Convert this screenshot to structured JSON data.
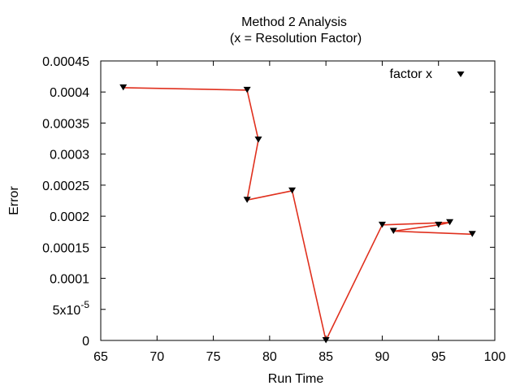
{
  "chart_data": {
    "type": "line",
    "title_line1": "Method 2 Analysis",
    "title_line2": "(x = Resolution Factor)",
    "xlabel": "Run Time",
    "ylabel": "Error",
    "xlim": [
      65,
      100
    ],
    "ylim": [
      0,
      0.00045
    ],
    "x_ticks": [
      65,
      70,
      75,
      80,
      85,
      90,
      95,
      100
    ],
    "y_ticks": [
      {
        "value": 0,
        "label": "0"
      },
      {
        "value": 5e-05,
        "label": "5x10",
        "sup": "-5"
      },
      {
        "value": 0.0001,
        "label": "0.0001"
      },
      {
        "value": 0.00015,
        "label": "0.00015"
      },
      {
        "value": 0.0002,
        "label": "0.0002"
      },
      {
        "value": 0.00025,
        "label": "0.00025"
      },
      {
        "value": 0.0003,
        "label": "0.0003"
      },
      {
        "value": 0.00035,
        "label": "0.00035"
      },
      {
        "value": 0.0004,
        "label": "0.0004"
      },
      {
        "value": 0.00045,
        "label": "0.00045"
      }
    ],
    "grid": false,
    "legend_position": "top-right",
    "series": [
      {
        "name": "factor x",
        "line_color": "#e0301e",
        "marker_color": "#000000",
        "marker": "triangle-down",
        "points": [
          {
            "x": 67,
            "y": 0.000407
          },
          {
            "x": 78,
            "y": 0.000403
          },
          {
            "x": 79,
            "y": 0.000323
          },
          {
            "x": 78,
            "y": 0.000226
          },
          {
            "x": 82,
            "y": 0.000241
          },
          {
            "x": 85,
            "y": 0.0
          },
          {
            "x": 90,
            "y": 0.000186
          },
          {
            "x": 96,
            "y": 0.00019
          },
          {
            "x": 95,
            "y": 0.000186
          },
          {
            "x": 91,
            "y": 0.000176
          },
          {
            "x": 98,
            "y": 0.000171
          }
        ]
      }
    ]
  }
}
